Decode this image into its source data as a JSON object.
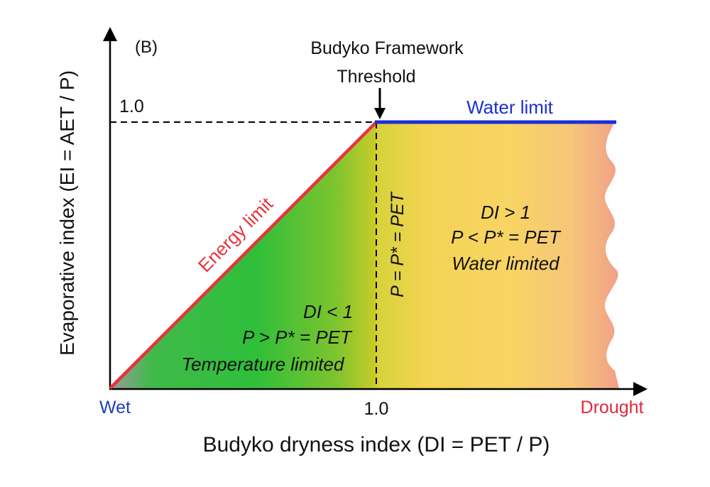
{
  "panel_label": "(B)",
  "threshold": {
    "line1": "Budyko Framework",
    "line2": "Threshold"
  },
  "y_tick": "1.0",
  "x_tick": "1.0",
  "water_limit": "Water limit",
  "energy_limit": "Energy limit",
  "boundary_label": "P = P* = PET",
  "left_region": {
    "line1": "DI < 1",
    "line2": "P > P* = PET",
    "line3": "Temperature limited"
  },
  "right_region": {
    "line1": "DI > 1",
    "line2": "P < P* = PET",
    "line3": "Water limited"
  },
  "x_end_left": "Wet",
  "x_end_right": "Drought",
  "x_axis_label": "Budyko dryness index (DI = PET / P)",
  "y_axis_label": "Evaporative index (EI = AET / P)",
  "colors": {
    "energy": "#e8323c",
    "water": "#1a2fd6",
    "wet": "#1f3fbf",
    "drought": "#e0283a"
  }
}
